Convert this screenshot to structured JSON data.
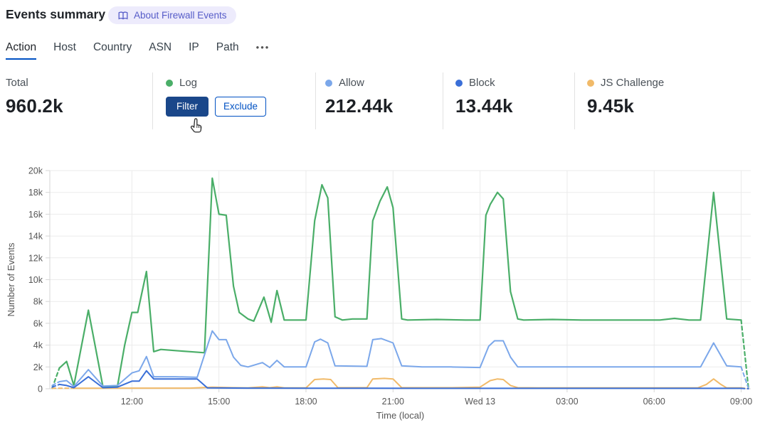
{
  "header": {
    "title": "Events summary",
    "badge": {
      "label": "About Firewall Events",
      "icon": "open-book-icon"
    }
  },
  "tabs": {
    "items": [
      {
        "label": "Action",
        "active": true
      },
      {
        "label": "Host",
        "active": false
      },
      {
        "label": "Country",
        "active": false
      },
      {
        "label": "ASN",
        "active": false
      },
      {
        "label": "IP",
        "active": false
      },
      {
        "label": "Path",
        "active": false
      }
    ],
    "more_label": "•••"
  },
  "stats": {
    "total": {
      "label": "Total",
      "value": "960.2k"
    },
    "items": [
      {
        "label": "Log",
        "color": "#4aae68",
        "value": "",
        "hovered": true,
        "actions": {
          "filter": "Filter",
          "exclude": "Exclude"
        }
      },
      {
        "label": "Allow",
        "color": "#7ba7ea",
        "value": "212.44k"
      },
      {
        "label": "Block",
        "color": "#3a6fd8",
        "value": "13.44k"
      },
      {
        "label": "JS Challenge",
        "color": "#f1ba69",
        "value": "9.45k"
      }
    ]
  },
  "chart_data": {
    "type": "line",
    "title": "",
    "xlabel": "Time (local)",
    "ylabel": "Number of Events",
    "grid": true,
    "legend_position": "stats-row-above",
    "ylim": [
      0,
      20000
    ],
    "y_ticks": [
      0,
      2000,
      4000,
      6000,
      8000,
      10000,
      12000,
      14000,
      16000,
      18000,
      20000
    ],
    "y_tick_labels": [
      "0",
      "2k",
      "4k",
      "6k",
      "8k",
      "10k",
      "12k",
      "14k",
      "16k",
      "18k",
      "20k"
    ],
    "x_unit": "hours local time; 24 = Wed 13 00:00",
    "x_range_hours": [
      9.17,
      33.33
    ],
    "x_ticks": [
      {
        "hour": 12,
        "label": "12:00"
      },
      {
        "hour": 15,
        "label": "15:00"
      },
      {
        "hour": 18,
        "label": "18:00"
      },
      {
        "hour": 21,
        "label": "21:00"
      },
      {
        "hour": 24,
        "label": "Wed 13"
      },
      {
        "hour": 27,
        "label": "03:00"
      },
      {
        "hour": 30,
        "label": "06:00"
      },
      {
        "hour": 33,
        "label": "09:00"
      }
    ],
    "edge_segments_dashed": true,
    "series": [
      {
        "name": "Log",
        "color": "#4aae68",
        "width": 2.2,
        "points": [
          [
            9.25,
            50
          ],
          [
            9.5,
            1900
          ],
          [
            9.75,
            2500
          ],
          [
            10,
            300
          ],
          [
            10.5,
            7200
          ],
          [
            11,
            200
          ],
          [
            11.5,
            200
          ],
          [
            11.75,
            4000
          ],
          [
            12,
            7000
          ],
          [
            12.2,
            7000
          ],
          [
            12.5,
            10750
          ],
          [
            12.75,
            3400
          ],
          [
            13,
            3600
          ],
          [
            13.5,
            3500
          ],
          [
            14,
            3400
          ],
          [
            14.5,
            3300
          ],
          [
            14.77,
            19300
          ],
          [
            15,
            16000
          ],
          [
            15.25,
            15900
          ],
          [
            15.5,
            9400
          ],
          [
            15.7,
            7000
          ],
          [
            16,
            6400
          ],
          [
            16.2,
            6200
          ],
          [
            16.55,
            8400
          ],
          [
            16.8,
            6100
          ],
          [
            17,
            9000
          ],
          [
            17.25,
            6300
          ],
          [
            18,
            6300
          ],
          [
            18.3,
            15400
          ],
          [
            18.55,
            18700
          ],
          [
            18.75,
            17500
          ],
          [
            19,
            6600
          ],
          [
            19.25,
            6300
          ],
          [
            19.6,
            6400
          ],
          [
            20.1,
            6400
          ],
          [
            20.3,
            15400
          ],
          [
            20.55,
            17200
          ],
          [
            20.8,
            18500
          ],
          [
            21,
            16600
          ],
          [
            21.3,
            6400
          ],
          [
            21.5,
            6300
          ],
          [
            22.5,
            6350
          ],
          [
            23.5,
            6300
          ],
          [
            24,
            6300
          ],
          [
            24.2,
            15900
          ],
          [
            24.35,
            16900
          ],
          [
            24.6,
            18000
          ],
          [
            24.8,
            17400
          ],
          [
            25.05,
            8900
          ],
          [
            25.3,
            6400
          ],
          [
            25.5,
            6300
          ],
          [
            26.5,
            6350
          ],
          [
            27.5,
            6300
          ],
          [
            28.5,
            6300
          ],
          [
            29.5,
            6300
          ],
          [
            30.2,
            6300
          ],
          [
            30.7,
            6450
          ],
          [
            31.2,
            6300
          ],
          [
            31.6,
            6300
          ],
          [
            32.05,
            18000
          ],
          [
            32.5,
            6400
          ],
          [
            33,
            6300
          ],
          [
            33.25,
            100
          ]
        ]
      },
      {
        "name": "Allow",
        "color": "#7ba7ea",
        "width": 2,
        "points": [
          [
            9.25,
            300
          ],
          [
            9.5,
            650
          ],
          [
            9.75,
            750
          ],
          [
            10,
            200
          ],
          [
            10.5,
            1750
          ],
          [
            11,
            250
          ],
          [
            11.5,
            300
          ],
          [
            12,
            1450
          ],
          [
            12.25,
            1650
          ],
          [
            12.5,
            2950
          ],
          [
            12.75,
            1100
          ],
          [
            13.5,
            1100
          ],
          [
            14.25,
            1050
          ],
          [
            14.77,
            5300
          ],
          [
            15,
            4500
          ],
          [
            15.25,
            4500
          ],
          [
            15.5,
            2900
          ],
          [
            15.75,
            2150
          ],
          [
            16,
            2000
          ],
          [
            16.5,
            2400
          ],
          [
            16.75,
            1950
          ],
          [
            17,
            2600
          ],
          [
            17.25,
            2000
          ],
          [
            18,
            2000
          ],
          [
            18.3,
            4300
          ],
          [
            18.5,
            4550
          ],
          [
            18.75,
            4200
          ],
          [
            19,
            2100
          ],
          [
            20.1,
            2050
          ],
          [
            20.3,
            4500
          ],
          [
            20.6,
            4600
          ],
          [
            21,
            4200
          ],
          [
            21.3,
            2100
          ],
          [
            22,
            2000
          ],
          [
            23,
            2000
          ],
          [
            24,
            1950
          ],
          [
            24.3,
            3900
          ],
          [
            24.5,
            4400
          ],
          [
            24.8,
            4400
          ],
          [
            25.05,
            2900
          ],
          [
            25.3,
            2000
          ],
          [
            26,
            2000
          ],
          [
            27,
            2000
          ],
          [
            28,
            2000
          ],
          [
            29,
            2000
          ],
          [
            30,
            2000
          ],
          [
            31,
            2000
          ],
          [
            31.6,
            2000
          ],
          [
            32.05,
            4200
          ],
          [
            32.5,
            2100
          ],
          [
            33,
            2000
          ],
          [
            33.25,
            50
          ]
        ]
      },
      {
        "name": "JS Challenge",
        "color": "#f1ba69",
        "width": 2,
        "points": [
          [
            9.25,
            50
          ],
          [
            10,
            50
          ],
          [
            11,
            50
          ],
          [
            12,
            60
          ],
          [
            13,
            60
          ],
          [
            14,
            60
          ],
          [
            14.77,
            150
          ],
          [
            15.5,
            100
          ],
          [
            16,
            80
          ],
          [
            16.5,
            180
          ],
          [
            16.75,
            100
          ],
          [
            17,
            180
          ],
          [
            17.25,
            80
          ],
          [
            18,
            80
          ],
          [
            18.3,
            850
          ],
          [
            18.6,
            900
          ],
          [
            18.85,
            850
          ],
          [
            19.1,
            100
          ],
          [
            20.1,
            100
          ],
          [
            20.3,
            900
          ],
          [
            20.7,
            950
          ],
          [
            21,
            900
          ],
          [
            21.3,
            100
          ],
          [
            22,
            100
          ],
          [
            23,
            100
          ],
          [
            24,
            150
          ],
          [
            24.35,
            750
          ],
          [
            24.6,
            900
          ],
          [
            24.8,
            850
          ],
          [
            25.05,
            300
          ],
          [
            25.3,
            100
          ],
          [
            26,
            80
          ],
          [
            27,
            80
          ],
          [
            28,
            80
          ],
          [
            29,
            80
          ],
          [
            30,
            80
          ],
          [
            31,
            80
          ],
          [
            31.5,
            80
          ],
          [
            31.8,
            400
          ],
          [
            32.05,
            900
          ],
          [
            32.3,
            400
          ],
          [
            32.5,
            80
          ],
          [
            33,
            80
          ],
          [
            33.25,
            20
          ]
        ]
      },
      {
        "name": "Block",
        "color": "#3a6fd8",
        "width": 2,
        "points": [
          [
            9.25,
            150
          ],
          [
            9.5,
            400
          ],
          [
            9.75,
            300
          ],
          [
            10,
            100
          ],
          [
            10.5,
            1100
          ],
          [
            11,
            100
          ],
          [
            11.5,
            150
          ],
          [
            12,
            700
          ],
          [
            12.25,
            700
          ],
          [
            12.5,
            1650
          ],
          [
            12.75,
            900
          ],
          [
            13.5,
            900
          ],
          [
            14.25,
            900
          ],
          [
            14.6,
            80
          ],
          [
            16,
            60
          ],
          [
            18,
            50
          ],
          [
            20,
            50
          ],
          [
            22,
            40
          ],
          [
            24,
            40
          ],
          [
            26,
            40
          ],
          [
            28,
            40
          ],
          [
            30,
            40
          ],
          [
            32,
            40
          ],
          [
            33,
            40
          ],
          [
            33.25,
            0
          ]
        ]
      }
    ]
  },
  "colors": {
    "accent_blue": "#0051c3",
    "primary_button": "#1a478a",
    "badge_bg": "#edebfc",
    "badge_fg": "#565cc8",
    "grid": "#ebebeb",
    "axis": "#d6d6d6",
    "tick_text": "#565656"
  }
}
